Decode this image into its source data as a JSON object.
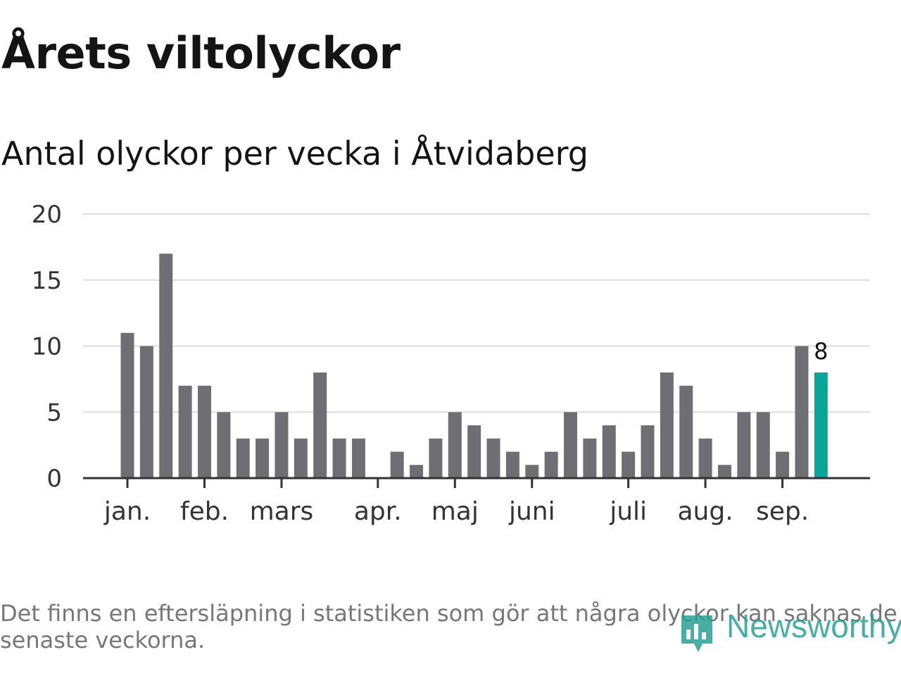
{
  "header": {
    "title": "Årets viltolyckor",
    "subtitle": "Antal olyckor per vecka i Åtvidaberg"
  },
  "chart_data": {
    "type": "bar",
    "ylim": [
      0,
      20
    ],
    "yticks": [
      0,
      5,
      10,
      15,
      20
    ],
    "grid": true,
    "month_labels": [
      {
        "label": "jan.",
        "week": 1
      },
      {
        "label": "feb.",
        "week": 5
      },
      {
        "label": "mars",
        "week": 9
      },
      {
        "label": "apr.",
        "week": 14
      },
      {
        "label": "maj",
        "week": 18
      },
      {
        "label": "juni",
        "week": 22
      },
      {
        "label": "juli",
        "week": 27
      },
      {
        "label": "aug.",
        "week": 31
      },
      {
        "label": "sep.",
        "week": 35
      }
    ],
    "values": [
      11,
      10,
      17,
      7,
      7,
      5,
      3,
      3,
      5,
      3,
      8,
      3,
      3,
      0,
      2,
      1,
      3,
      5,
      4,
      3,
      2,
      1,
      2,
      5,
      3,
      4,
      2,
      4,
      8,
      7,
      3,
      1,
      5,
      5,
      2,
      10,
      8
    ],
    "highlight_label": "8",
    "colors": {
      "bar": "#6f6e73",
      "highlight": "#06a698",
      "grid": "#dddddd",
      "axis": "#333333",
      "tick_text": "#333333"
    }
  },
  "footer": {
    "note": "Det finns en eftersläpning i statistiken som gör att några olyckor kan saknas de senaste veckorna.",
    "brand": "Newsworthy",
    "brand_icon": "bar-chart-logo-icon"
  }
}
